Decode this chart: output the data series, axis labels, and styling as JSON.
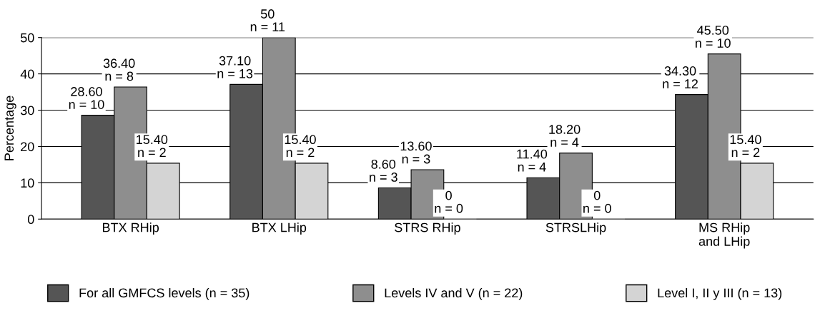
{
  "chart_data": {
    "type": "bar",
    "ylabel": "Percentage",
    "categories": [
      "BTX RHip",
      "BTX LHip",
      "STRS RHip",
      "STRSLHip",
      "MS RHip\nand LHip"
    ],
    "series": [
      {
        "name": "For all GMFCS levels (n = 35)",
        "color": "#555555",
        "values": [
          28.6,
          37.1,
          8.6,
          11.4,
          34.3
        ],
        "value_labels": [
          "28.60\nn = 10",
          "37.10\nn = 13",
          "8.60\nn = 3",
          "11.40\nn = 4",
          "34.30\nn = 12"
        ]
      },
      {
        "name": "Levels IV and V (n = 22)",
        "color": "#8e8e8e",
        "values": [
          36.4,
          50,
          13.6,
          18.2,
          45.5
        ],
        "value_labels": [
          "36.40\nn = 8",
          "50\nn = 11",
          "13.60\nn = 3",
          "18.20\nn = 4",
          "45.50\nn = 10"
        ]
      },
      {
        "name": "Level I, II y III (n = 13)",
        "color": "#d4d4d4",
        "values": [
          15.4,
          15.4,
          0,
          0,
          15.4
        ],
        "value_labels": [
          "15.40\nn = 2",
          "15.40\nn = 2",
          "0\nn = 0",
          "0\nn = 0",
          "15.40\nn = 2"
        ]
      }
    ],
    "ylim": [
      0,
      50
    ],
    "yticks": [
      0,
      10,
      20,
      30,
      40,
      50
    ],
    "grid": "y",
    "legend": "bottom"
  }
}
